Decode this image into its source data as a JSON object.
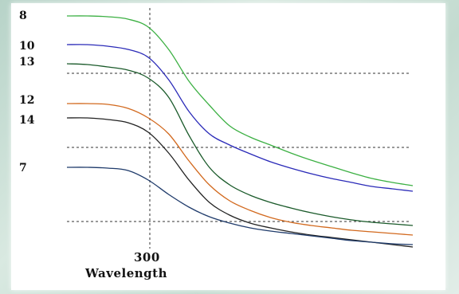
{
  "chart_data": {
    "type": "line",
    "title": "",
    "xlabel": "Wavelength",
    "ylabel": "",
    "x_tick_labels": [
      "300"
    ],
    "grid": "dashed horizontal reference lines and vertical line at 300",
    "series": [
      {
        "name": "8",
        "color": "#3cb043",
        "values": [
          20,
          20,
          21,
          24,
          34,
          62,
          102,
          132,
          158,
          172,
          182,
          192,
          201,
          209,
          217,
          224,
          229,
          233
        ]
      },
      {
        "name": "10",
        "color": "#2a2ab8",
        "values": [
          56,
          56,
          58,
          62,
          72,
          100,
          140,
          168,
          182,
          193,
          203,
          211,
          218,
          224,
          229,
          234,
          237,
          240
        ]
      },
      {
        "name": "13",
        "color": "#1a5a2a",
        "values": [
          80,
          81,
          84,
          88,
          98,
          122,
          170,
          210,
          232,
          245,
          254,
          261,
          267,
          272,
          276,
          279,
          281,
          283
        ]
      },
      {
        "name": "12",
        "color": "#d2691e",
        "values": [
          130,
          130,
          131,
          136,
          148,
          168,
          202,
          232,
          252,
          264,
          273,
          279,
          283,
          286,
          289,
          291,
          293,
          295
        ]
      },
      {
        "name": "14",
        "color": "#222222",
        "values": [
          148,
          148,
          150,
          154,
          166,
          192,
          226,
          254,
          270,
          280,
          286,
          291,
          295,
          298,
          301,
          304,
          307,
          310
        ]
      },
      {
        "name": "7",
        "color": "#1f3b6b",
        "values": [
          210,
          210,
          211,
          214,
          226,
          244,
          260,
          272,
          280,
          286,
          290,
          293,
          296,
          299,
          302,
          304,
          306,
          307
        ]
      }
    ]
  }
}
